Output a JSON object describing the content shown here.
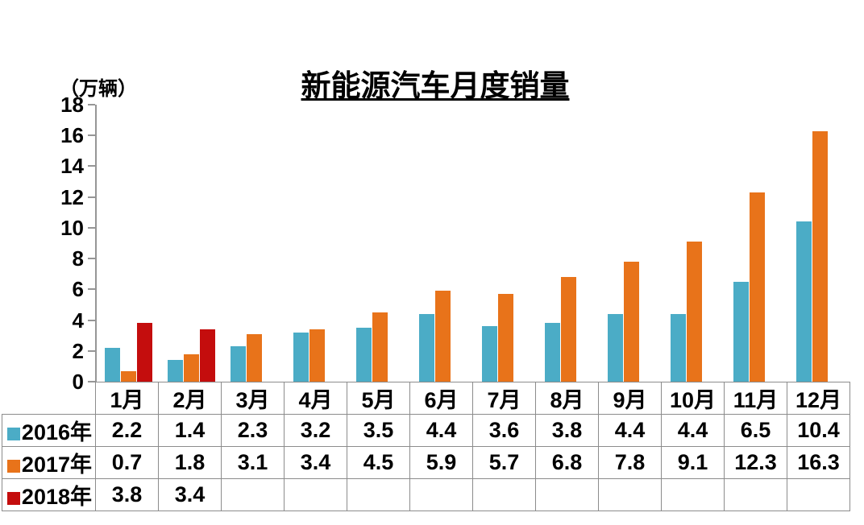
{
  "chart": {
    "title": "新能源汽车月度销量",
    "unit_label": "（万辆）"
  },
  "chart_data": {
    "type": "bar",
    "title": "新能源汽车月度销量",
    "ylabel": "（万辆）",
    "categories": [
      "1月",
      "2月",
      "3月",
      "4月",
      "5月",
      "6月",
      "7月",
      "8月",
      "9月",
      "10月",
      "11月",
      "12月"
    ],
    "series": [
      {
        "name": "2016年",
        "color": "#4BACC6",
        "values": [
          2.2,
          1.4,
          2.3,
          3.2,
          3.5,
          4.4,
          3.6,
          3.8,
          4.4,
          4.4,
          6.5,
          10.4
        ]
      },
      {
        "name": "2017年",
        "color": "#E8731A",
        "values": [
          0.7,
          1.8,
          3.1,
          3.4,
          4.5,
          5.9,
          5.7,
          6.8,
          7.8,
          9.1,
          12.3,
          16.3
        ]
      },
      {
        "name": "2018年",
        "color": "#C40D0D",
        "values": [
          3.8,
          3.4,
          null,
          null,
          null,
          null,
          null,
          null,
          null,
          null,
          null,
          null
        ]
      }
    ],
    "ylim": [
      0,
      18
    ],
    "yticks": [
      0,
      2,
      4,
      6,
      8,
      10,
      12,
      14,
      16,
      18
    ],
    "grid": false,
    "legend_position": "data-table-left",
    "data_table_shown": true,
    "axis_color": "#969696",
    "table_border_color": "#8C8C8C",
    "text_color": "#000000"
  }
}
